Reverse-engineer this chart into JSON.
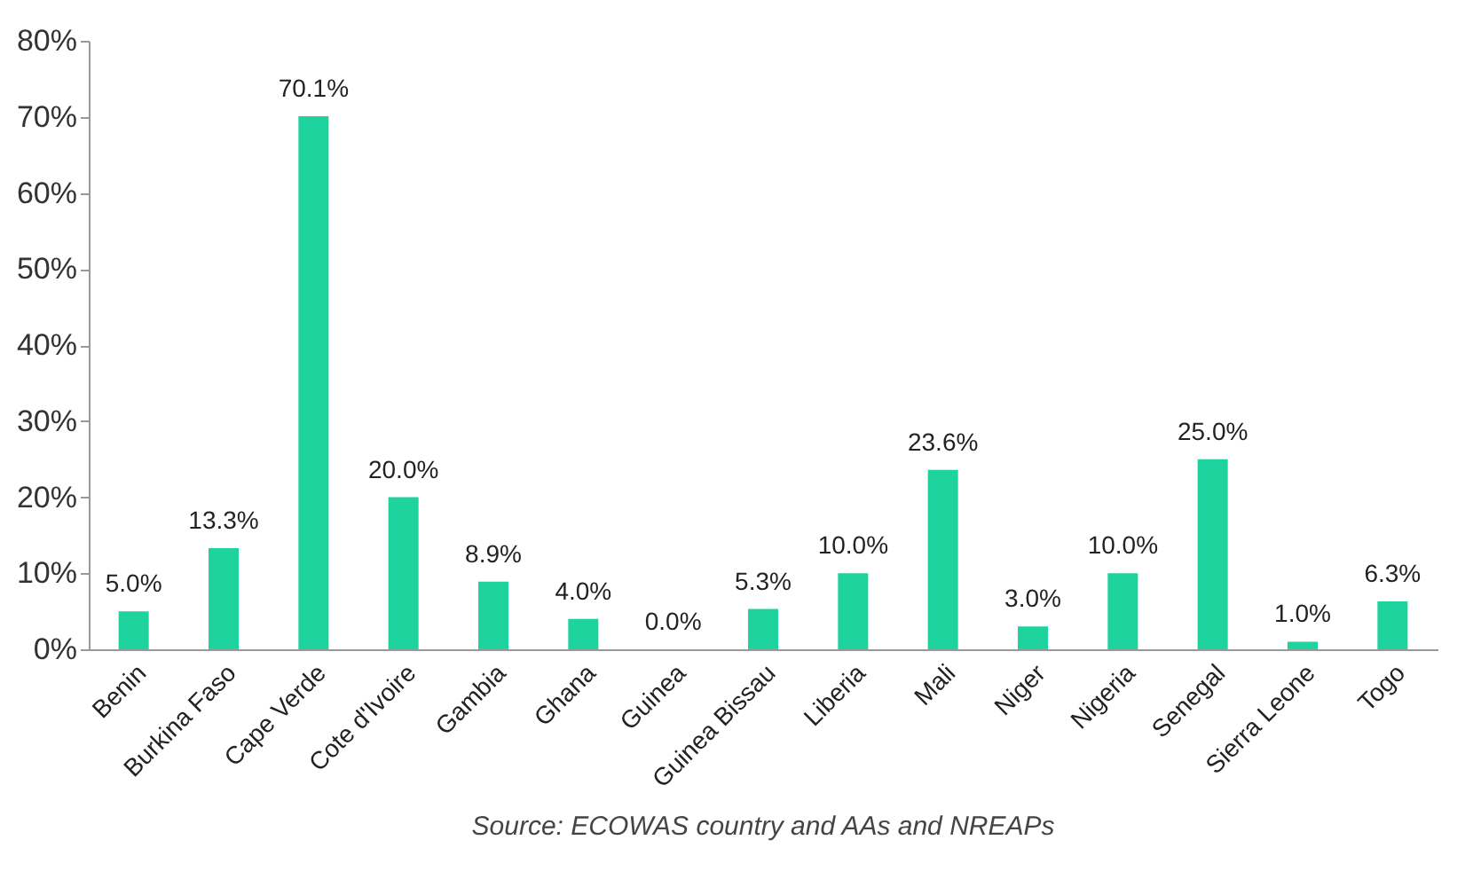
{
  "chart_data": {
    "type": "bar",
    "categories": [
      "Benin",
      "Burkina Faso",
      "Cape Verde",
      "Cote d'Ivoire",
      "Gambia",
      "Ghana",
      "Guinea",
      "Guinea Bissau",
      "Liberia",
      "Mali",
      "Niger",
      "Nigeria",
      "Senegal",
      "Sierra Leone",
      "Togo"
    ],
    "values": [
      5.0,
      13.3,
      70.1,
      20.0,
      8.9,
      4.0,
      0.0,
      5.3,
      10.0,
      23.6,
      3.0,
      10.0,
      25.0,
      1.0,
      6.3
    ],
    "value_labels": [
      "5.0%",
      "13.3%",
      "70.1%",
      "20.0%",
      "8.9%",
      "4.0%",
      "0.0%",
      "5.3%",
      "10.0%",
      "23.6%",
      "3.0%",
      "10.0%",
      "25.0%",
      "1.0%",
      "6.3%"
    ],
    "color": "#1ed39e",
    "ylim": [
      0,
      80
    ],
    "yticks": [
      {
        "value": 0,
        "label": "0%"
      },
      {
        "value": 10,
        "label": "10%"
      },
      {
        "value": 20,
        "label": "20%"
      },
      {
        "value": 30,
        "label": "30%"
      },
      {
        "value": 40,
        "label": "40%"
      },
      {
        "value": 50,
        "label": "50%"
      },
      {
        "value": 60,
        "label": "60%"
      },
      {
        "value": 70,
        "label": "70%"
      },
      {
        "value": 80,
        "label": "80%"
      }
    ],
    "grid": false,
    "annotations": [
      "Source: ECOWAS country and AAs and NREAPs"
    ]
  }
}
